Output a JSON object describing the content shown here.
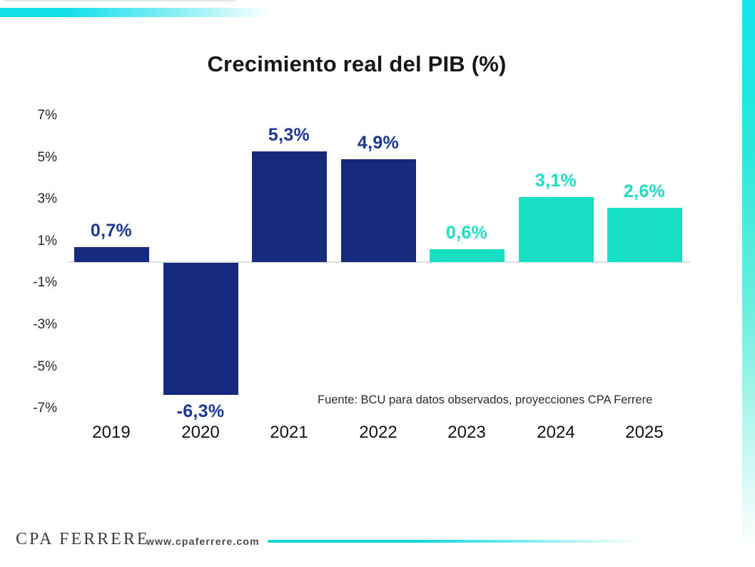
{
  "accents": {
    "teal": "#0edfe9",
    "navy": "#16297c"
  },
  "chart_data": {
    "type": "bar",
    "title": "Crecimiento real del PIB (%)",
    "categories": [
      "2019",
      "2020",
      "2021",
      "2022",
      "2023",
      "2024",
      "2025"
    ],
    "values": [
      0.7,
      -6.3,
      5.3,
      4.9,
      0.6,
      3.1,
      2.6
    ],
    "value_labels": [
      "0,7%",
      "-6,3%",
      "5,3%",
      "4,9%",
      "0,6%",
      "3,1%",
      "2,6%"
    ],
    "bar_types": [
      "observed",
      "observed",
      "observed",
      "observed",
      "projected",
      "projected",
      "projected"
    ],
    "series_colors": {
      "observed": "#16297c",
      "projected": "#17dfc3"
    },
    "label_colors": {
      "observed": "#1d3795",
      "projected": "#1edcc3"
    },
    "y_ticks": [
      "7%",
      "5%",
      "3%",
      "1%",
      "-1%",
      "-3%",
      "-5%",
      "-7%"
    ],
    "y_tick_values": [
      7,
      5,
      3,
      1,
      -1,
      -3,
      -5,
      -7
    ],
    "ylim": [
      -7.5,
      7.5
    ],
    "grid": false,
    "legend": "none",
    "xlabel": "",
    "ylabel": "",
    "source_note": "Fuente: BCU para datos observados, proyecciones CPA Ferrere"
  },
  "footer": {
    "logo_text": "CPA FERRERE",
    "website": "www.cpaferrere.com"
  }
}
